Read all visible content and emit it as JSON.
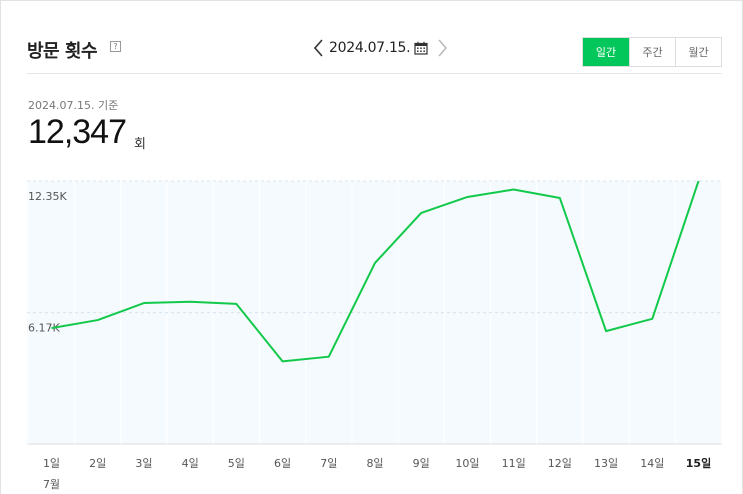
{
  "header": {
    "title": "방문 횟수",
    "help": "?",
    "date": "2024.07.15.",
    "period_tabs": [
      {
        "label": "일간",
        "active": true
      },
      {
        "label": "주간",
        "active": false
      },
      {
        "label": "월간",
        "active": false
      }
    ]
  },
  "summary": {
    "basis": "2024.07.15. 기준",
    "value": "12,347",
    "unit": "회"
  },
  "colors": {
    "accent": "#03c75a",
    "line": "#12c94a",
    "plot_bg": "#f4fafe"
  },
  "icons": {
    "prev": "chevron-left-icon",
    "next": "chevron-right-icon",
    "calendar": "calendar-icon"
  },
  "chart_data": {
    "type": "line",
    "categories": [
      "1일",
      "2일",
      "3일",
      "4일",
      "5일",
      "6일",
      "7일",
      "8일",
      "9일",
      "10일",
      "11일",
      "12일",
      "13일",
      "14일",
      "15일"
    ],
    "highlight_category": "15일",
    "month_label": "7월",
    "values": [
      5440,
      5820,
      6620,
      6680,
      6580,
      3880,
      4100,
      8500,
      10850,
      11600,
      11950,
      11550,
      5300,
      5880,
      12347
    ],
    "ylim": [
      0,
      12350
    ],
    "y_ticks": [
      {
        "value": 6170,
        "label": "6.17K"
      },
      {
        "value": 12350,
        "label": "12.35K"
      }
    ],
    "grid": true,
    "title": "",
    "xlabel": "",
    "ylabel": ""
  }
}
